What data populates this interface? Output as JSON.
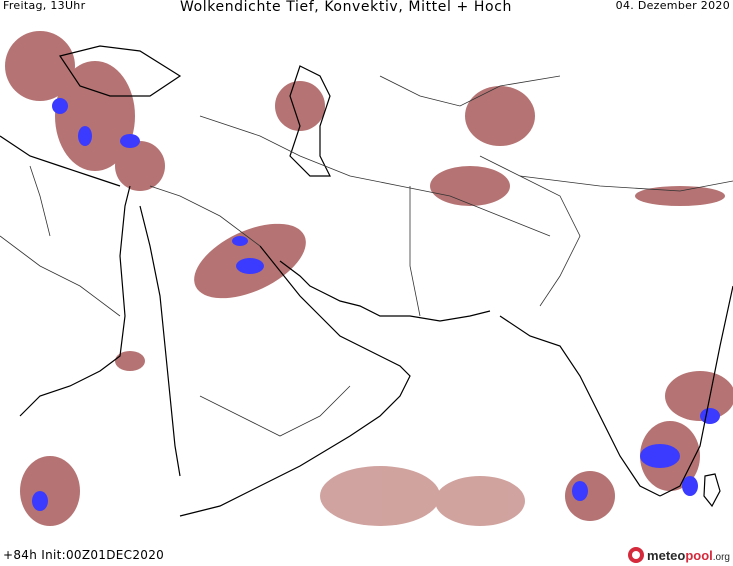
{
  "header": {
    "valid_time": "Freitag, 13Uhr",
    "title": "Wolkendichte  Tief, Konvektiv, Mittel + Hoch",
    "date": "04. Dezember 2020"
  },
  "footer": {
    "run_info": "+84h  Init:00Z01DEC2020"
  },
  "logo": {
    "part1": "meteo",
    "part2": "pool",
    "part3": ".org"
  },
  "colors": {
    "cloud": "#a85a5a",
    "cloud_light": "#c8938f",
    "convective": "#3b3bff",
    "coastline": "#000000",
    "border": "#333333",
    "logo_accent": "#d52a3c"
  }
}
